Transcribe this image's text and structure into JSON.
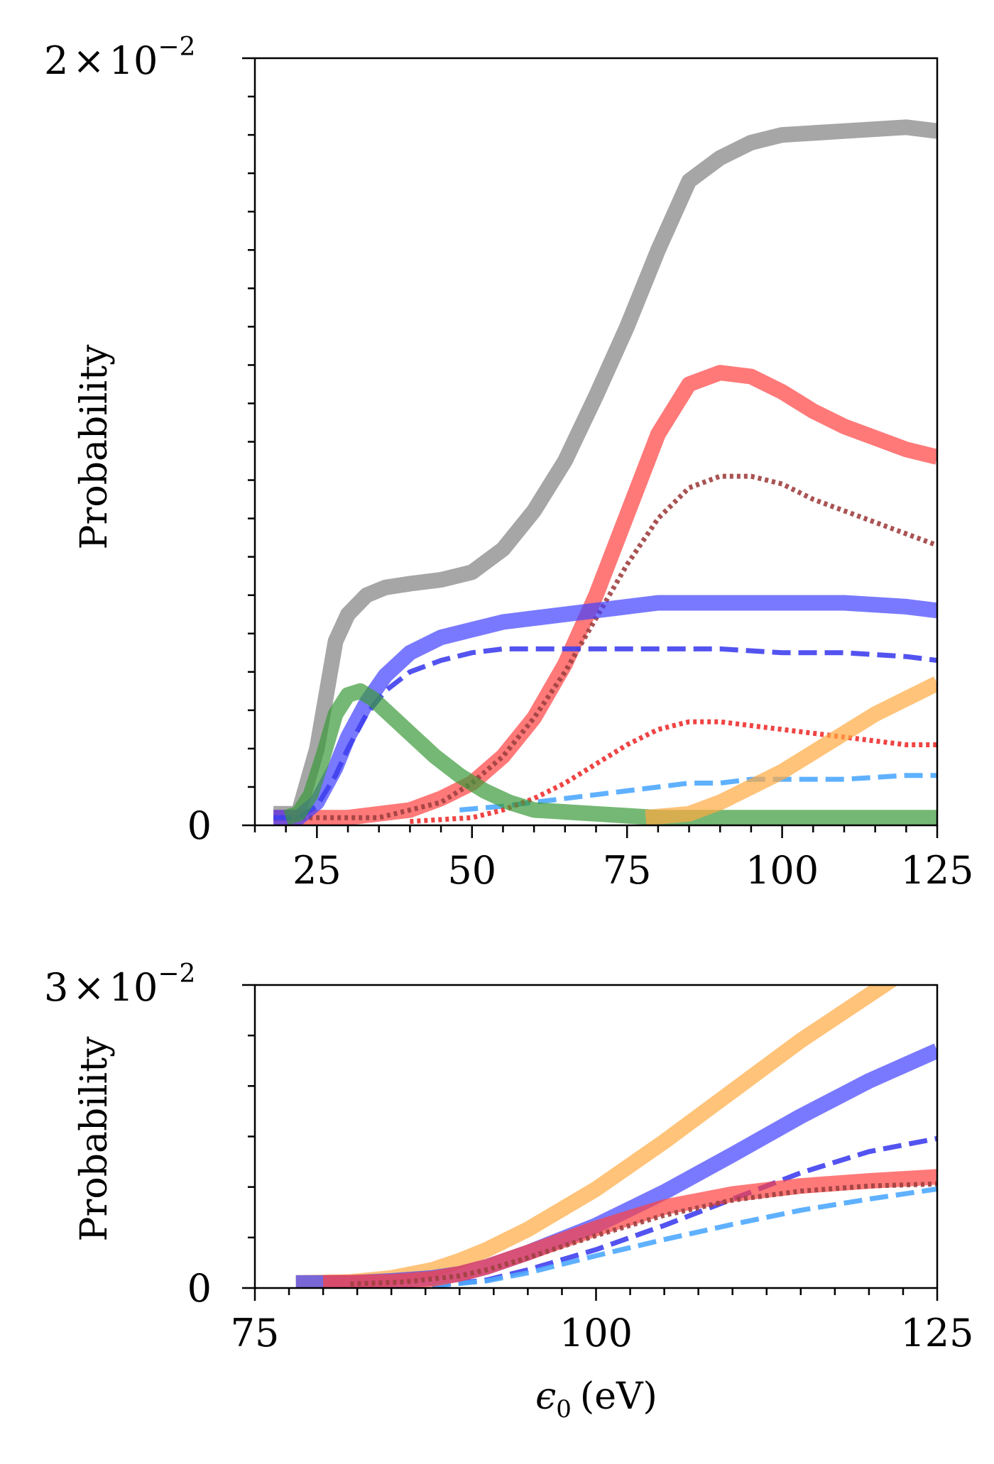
{
  "chart_data": [
    {
      "type": "line",
      "title": "",
      "xlabel": "",
      "ylabel": "Probability",
      "xlim": [
        15,
        125
      ],
      "ylim": [
        0,
        0.02
      ],
      "ylim_label": "2 × 10⁻²",
      "y_base": "10",
      "y_exp": "−2",
      "xticks": [
        "25",
        "50",
        "75",
        "100",
        "125"
      ],
      "xtick_values": [
        25,
        50,
        75,
        100,
        125
      ],
      "yticks": [
        "0"
      ],
      "grid": false,
      "legend": "none",
      "series": [
        {
          "color": "#808080",
          "style": "solid",
          "width": "thick",
          "x": [
            18,
            22,
            25,
            28,
            30,
            33,
            36,
            40,
            45,
            50,
            55,
            60,
            65,
            70,
            75,
            80,
            85,
            90,
            95,
            100,
            110,
            120,
            125
          ],
          "y": [
            0.0003,
            0.0003,
            0.002,
            0.0048,
            0.0055,
            0.006,
            0.0062,
            0.0063,
            0.0064,
            0.0066,
            0.0072,
            0.0082,
            0.0095,
            0.0112,
            0.013,
            0.015,
            0.0168,
            0.0174,
            0.0178,
            0.018,
            0.0181,
            0.0182,
            0.0181
          ]
        },
        {
          "color": "#ff4040",
          "style": "solid",
          "width": "thick",
          "x": [
            18,
            30,
            40,
            45,
            50,
            55,
            60,
            65,
            70,
            75,
            80,
            85,
            90,
            95,
            100,
            105,
            110,
            115,
            120,
            125
          ],
          "y": [
            0.0002,
            0.0002,
            0.0004,
            0.0007,
            0.0011,
            0.0018,
            0.0028,
            0.0042,
            0.006,
            0.0081,
            0.0102,
            0.0115,
            0.0118,
            0.0117,
            0.0113,
            0.0108,
            0.0104,
            0.0101,
            0.0098,
            0.0096
          ]
        },
        {
          "color": "#a04040",
          "style": "dotted",
          "width": "medium",
          "x": [
            18,
            35,
            45,
            50,
            55,
            60,
            65,
            70,
            75,
            80,
            85,
            90,
            95,
            100,
            105,
            110,
            115,
            120,
            125
          ],
          "y": [
            0.0002,
            0.0002,
            0.0006,
            0.0011,
            0.0018,
            0.0028,
            0.004,
            0.0054,
            0.0068,
            0.008,
            0.0088,
            0.0091,
            0.0091,
            0.0089,
            0.0085,
            0.0082,
            0.0079,
            0.0076,
            0.0073
          ]
        },
        {
          "color": "#4040ff",
          "style": "solid",
          "width": "thick",
          "x": [
            18,
            22,
            25,
            28,
            30,
            33,
            36,
            40,
            45,
            50,
            55,
            60,
            65,
            70,
            75,
            80,
            90,
            100,
            110,
            120,
            125
          ],
          "y": [
            0.0002,
            0.0002,
            0.0006,
            0.0015,
            0.0023,
            0.0032,
            0.0039,
            0.0045,
            0.0049,
            0.0051,
            0.0053,
            0.0054,
            0.0055,
            0.0056,
            0.0057,
            0.0058,
            0.0058,
            0.0058,
            0.0058,
            0.0057,
            0.0056
          ]
        },
        {
          "color": "#4040ee",
          "style": "dashed",
          "width": "medium",
          "x": [
            18,
            22,
            25,
            28,
            30,
            33,
            36,
            40,
            45,
            50,
            55,
            60,
            70,
            80,
            90,
            100,
            110,
            120,
            125
          ],
          "y": [
            0.0002,
            0.0002,
            0.0005,
            0.0013,
            0.002,
            0.0029,
            0.0035,
            0.004,
            0.0043,
            0.0045,
            0.0046,
            0.0046,
            0.0046,
            0.0046,
            0.0046,
            0.0045,
            0.0045,
            0.0044,
            0.0043
          ]
        },
        {
          "color": "#4ea8ff",
          "style": "dashed",
          "width": "medium",
          "x": [
            48,
            55,
            60,
            65,
            70,
            75,
            80,
            85,
            90,
            95,
            100,
            105,
            110,
            120,
            125
          ],
          "y": [
            0.0004,
            0.0005,
            0.0006,
            0.0007,
            0.0008,
            0.0009,
            0.001,
            0.0011,
            0.0011,
            0.0012,
            0.0012,
            0.0012,
            0.0012,
            0.0013,
            0.0013
          ]
        },
        {
          "color": "#ee3030",
          "style": "dotted",
          "width": "medium",
          "x": [
            40,
            50,
            55,
            60,
            65,
            70,
            75,
            80,
            85,
            90,
            95,
            100,
            105,
            110,
            115,
            120,
            125
          ],
          "y": [
            0.0001,
            0.0002,
            0.0004,
            0.0007,
            0.0011,
            0.0016,
            0.0021,
            0.0025,
            0.0027,
            0.0027,
            0.0026,
            0.0025,
            0.0024,
            0.0023,
            0.0022,
            0.0021,
            0.0021
          ]
        },
        {
          "color": "#3a9a3a",
          "style": "solid",
          "width": "thick",
          "x": [
            20,
            22,
            24,
            26,
            28,
            30,
            32,
            34,
            36,
            38,
            40,
            44,
            48,
            52,
            56,
            60,
            70,
            80,
            90,
            100,
            110,
            125
          ],
          "y": [
            0.0002,
            0.0003,
            0.0008,
            0.0018,
            0.0029,
            0.0034,
            0.0035,
            0.0033,
            0.003,
            0.0027,
            0.0024,
            0.0018,
            0.0013,
            0.0009,
            0.0006,
            0.0004,
            0.0003,
            0.0002,
            0.0002,
            0.0002,
            0.0002,
            0.0002
          ]
        },
        {
          "color": "#ffaa40",
          "style": "solid",
          "width": "thick",
          "x": [
            78,
            85,
            90,
            95,
            100,
            105,
            110,
            115,
            120,
            125
          ],
          "y": [
            0.0002,
            0.0003,
            0.0006,
            0.001,
            0.0014,
            0.0019,
            0.0024,
            0.0029,
            0.0033,
            0.0037
          ]
        }
      ]
    },
    {
      "type": "line",
      "title": "",
      "xlabel": "ϵ₀ (eV)",
      "xlabel_sym": "ϵ",
      "xlabel_sub": "0",
      "xlabel_unit": "(eV)",
      "ylabel": "Probability",
      "xlim": [
        75,
        125
      ],
      "ylim": [
        0,
        0.03
      ],
      "ylim_label": "3 × 10⁻²",
      "y_base": "10",
      "y_exp": "−2",
      "xticks": [
        "75",
        "100",
        "125"
      ],
      "xtick_values": [
        75,
        100,
        125
      ],
      "yticks": [
        "0"
      ],
      "grid": false,
      "legend": "none",
      "series": [
        {
          "color": "#ffaa40",
          "style": "solid",
          "width": "thick",
          "x": [
            78,
            82,
            85,
            88,
            90,
            92,
            95,
            100,
            105,
            110,
            115,
            120,
            125
          ],
          "y": [
            0.0005,
            0.0006,
            0.001,
            0.0018,
            0.0027,
            0.0038,
            0.0058,
            0.0098,
            0.0145,
            0.0195,
            0.0245,
            0.029,
            0.0335
          ]
        },
        {
          "color": "#4040ff",
          "style": "solid",
          "width": "thick",
          "x": [
            78,
            82,
            85,
            88,
            90,
            92,
            95,
            100,
            105,
            110,
            115,
            120,
            125
          ],
          "y": [
            0.0005,
            0.0005,
            0.0007,
            0.001,
            0.0014,
            0.0021,
            0.0035,
            0.0062,
            0.0095,
            0.0132,
            0.017,
            0.0205,
            0.0235
          ]
        },
        {
          "color": "#4040ee",
          "style": "dashed",
          "width": "medium",
          "x": [
            88,
            92,
            95,
            100,
            105,
            110,
            115,
            120,
            125
          ],
          "y": [
            0.0002,
            0.0008,
            0.0018,
            0.0038,
            0.0062,
            0.0088,
            0.0114,
            0.0135,
            0.0148
          ]
        },
        {
          "color": "#4ea8ff",
          "style": "dashed",
          "width": "medium",
          "x": [
            88,
            92,
            95,
            100,
            105,
            110,
            115,
            120,
            125
          ],
          "y": [
            0.0002,
            0.0007,
            0.0015,
            0.0032,
            0.0048,
            0.0063,
            0.0077,
            0.0088,
            0.0098
          ]
        },
        {
          "color": "#ff4040",
          "style": "solid",
          "width": "thick",
          "x": [
            80,
            85,
            88,
            90,
            92,
            95,
            100,
            105,
            110,
            115,
            120,
            125
          ],
          "y": [
            0.0005,
            0.0006,
            0.0009,
            0.0014,
            0.0021,
            0.0035,
            0.0059,
            0.008,
            0.0093,
            0.0101,
            0.0106,
            0.011
          ]
        },
        {
          "color": "#a04040",
          "style": "dotted",
          "width": "medium",
          "x": [
            82,
            86,
            90,
            92,
            95,
            100,
            105,
            110,
            115,
            120,
            125
          ],
          "y": [
            0.0004,
            0.0006,
            0.0012,
            0.0018,
            0.003,
            0.0052,
            0.0072,
            0.0087,
            0.0096,
            0.0101,
            0.0103
          ]
        }
      ]
    }
  ]
}
